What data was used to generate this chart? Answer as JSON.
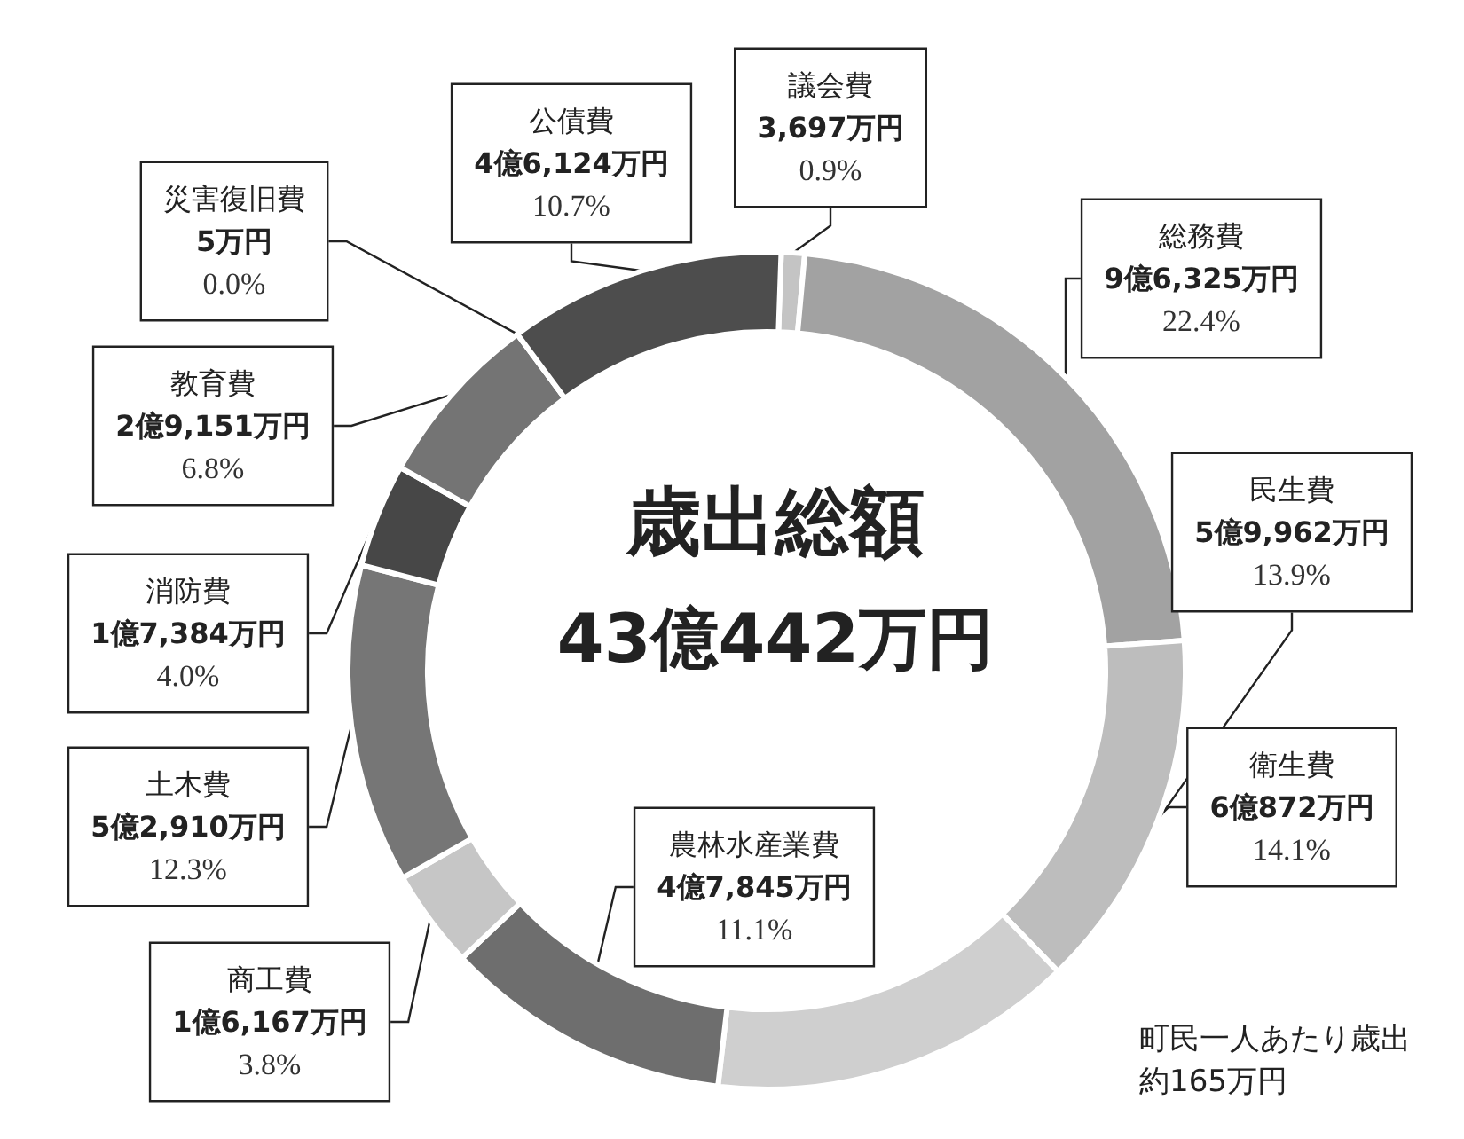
{
  "chart_data": {
    "type": "donut",
    "title": "歳出総額",
    "subtitle": "43億442万円",
    "categories": [
      "議会費",
      "総務費",
      "民生費",
      "衛生費",
      "農林水産業費",
      "商工費",
      "土木費",
      "消防費",
      "教育費",
      "災害復旧費",
      "公債費"
    ],
    "values": [
      0.9,
      22.4,
      13.9,
      14.1,
      11.1,
      3.8,
      12.3,
      4.0,
      6.8,
      0.0,
      10.7
    ],
    "value_labels": [
      "3,697万円\n0.9%",
      "9億6,325万円\n22.4%",
      "5億9,962万円\n13.9%",
      "6億872万円\n14.1%",
      "4億7,845万円\n11.1%",
      "1億6,167万円\n3.8%",
      "5億2,910万円\n12.3%",
      "1億7,384万円\n4.0%",
      "2億9,151万円\n6.8%",
      "5万円\n0.0%",
      "4億6,124万円\n10.7%"
    ],
    "colors": [
      "#c4c4c4",
      "#a2a2a2",
      "#bdbdbd",
      "#cfcfcf",
      "#6e6e6e",
      "#c6c6c6",
      "#767676",
      "#474747",
      "#747474",
      "#6a6a6a",
      "#4d4d4d"
    ],
    "annotations": [
      "町民一人あたり歳出",
      "約165万円"
    ],
    "legend": false
  }
}
